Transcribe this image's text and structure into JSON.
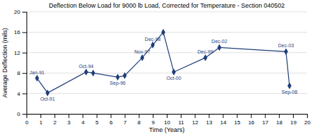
{
  "chart_data": {
    "type": "line",
    "title": "Deflection Below Load for 9000 lb Load, Corrected for Temperature - Section 040502",
    "xlabel": "Time (Years)",
    "ylabel": "Average Deflection (mils)",
    "xlim": [
      0,
      20
    ],
    "ylim": [
      0,
      20
    ],
    "xticks": [
      0,
      1,
      2,
      3,
      4,
      5,
      6,
      7,
      8,
      9,
      10,
      11,
      12,
      13,
      14,
      15,
      16,
      17,
      18,
      19,
      20
    ],
    "yticks": [
      0,
      4,
      8,
      12,
      16,
      20
    ],
    "x": [
      0.75,
      1.5,
      4.25,
      4.75,
      6.5,
      7.0,
      8.25,
      9.0,
      9.75,
      10.5,
      12.75,
      13.75,
      18.5,
      18.75
    ],
    "values": [
      7.0,
      4.1,
      8.2,
      8.0,
      7.2,
      7.5,
      11.0,
      13.5,
      16.0,
      8.2,
      11.0,
      13.0,
      12.2,
      5.5
    ],
    "annotations": [
      "Jan-91",
      "Oct-91",
      "Oct-94",
      null,
      "Sep-96",
      null,
      "Nov-97",
      "Dec-98",
      null,
      "Oct-00",
      "Dec-99",
      "Dec-02",
      "Dec-03",
      "Sep-08"
    ],
    "color": "#1F3D7A",
    "marker": "diamond",
    "grid": true
  }
}
